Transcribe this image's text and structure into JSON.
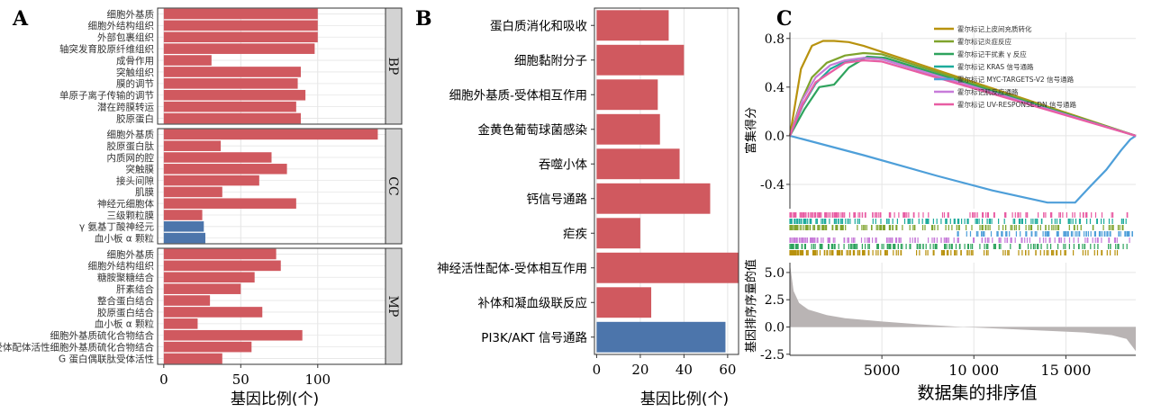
{
  "panels": {
    "A": {
      "label": "A"
    },
    "B": {
      "label": "B"
    },
    "C": {
      "label": "C"
    }
  },
  "colors": {
    "up": "#d0595f",
    "down": "#4c75ab",
    "strip": "#d3d3d3",
    "grid": "#e5e5e5",
    "rank": "#b9b4b4"
  },
  "chart_data": [
    {
      "id": "A",
      "type": "bar",
      "orientation": "horizontal",
      "xlabel": "基因比例(个)",
      "xlim": [
        -4,
        144
      ],
      "xticks": [
        0,
        50,
        100
      ],
      "facets": [
        {
          "name": "BP",
          "categories": [
            "细胞外基质",
            "细胞外结构组织",
            "外部包裹组织",
            "轴突发育胶原纤维组织",
            "成骨作用",
            "突触组织",
            "膜的调节",
            "单原子离子传输的调节",
            "潜在跨膜转运",
            "胶原蛋白"
          ],
          "values": [
            100,
            100,
            100,
            98,
            31,
            89,
            87,
            92,
            86,
            89
          ],
          "color_index": [
            0,
            0,
            0,
            0,
            0,
            0,
            0,
            0,
            0,
            0
          ]
        },
        {
          "name": "CC",
          "categories": [
            "细胞外基质",
            "胶原蛋白肽",
            "内质网的腔",
            "突触膜",
            "接头间隙",
            "肌膜",
            "神经元细胞体",
            "三级颗粒膜",
            "γ 氨基丁酸神经元",
            "血小板 α 颗粒"
          ],
          "values": [
            139,
            37,
            70,
            80,
            62,
            38,
            86,
            25,
            26,
            27
          ],
          "color_index": [
            0,
            0,
            0,
            0,
            0,
            0,
            0,
            0,
            1,
            1
          ]
        },
        {
          "name": "MP",
          "categories": [
            "细胞外基质",
            "细胞外结构组织",
            "糖胺聚糖结合",
            "肝素结合",
            "整合蛋白结合",
            "胶原蛋白结合",
            "血小板 α 颗粒",
            "细胞外基质硫化合物结合",
            "受体配体活性细胞外基质硫化合物结合",
            "G 蛋白偶联肽受体活性"
          ],
          "values": [
            73,
            76,
            59,
            50,
            30,
            64,
            22,
            90,
            57,
            38
          ],
          "color_index": [
            0,
            0,
            0,
            0,
            0,
            0,
            0,
            0,
            0,
            0
          ]
        }
      ]
    },
    {
      "id": "B",
      "type": "bar",
      "orientation": "horizontal",
      "xlabel": "基因比例(个)",
      "xlim": [
        -1,
        65
      ],
      "xticks": [
        0,
        20,
        40,
        60
      ],
      "categories": [
        "蛋白质消化和吸收",
        "细胞黏附分子",
        "细胞外基质-受体相互作用",
        "金黄色葡萄球菌感染",
        "吞噬小体",
        "钙信号通路",
        "疟疾",
        "神经活性配体-受体相互作用",
        "补体和凝血级联反应",
        "PI3K/AKT 信号通路"
      ],
      "values": [
        33,
        40,
        28,
        29,
        38,
        52,
        20,
        65,
        25,
        59
      ],
      "color_index": [
        0,
        0,
        0,
        0,
        0,
        0,
        0,
        0,
        0,
        1
      ]
    },
    {
      "id": "C",
      "type": "line",
      "xlabel": "数据集的排序值",
      "x_ticks": [
        5000,
        10000,
        15000
      ],
      "x_tick_labels": [
        "5000",
        "10 000",
        "15 000"
      ],
      "xlim": [
        0,
        18800
      ],
      "es_ylabel": "富集得分",
      "es_ylim": [
        -0.6,
        0.85
      ],
      "es_yticks": [
        0.8,
        0.4,
        0.0,
        -0.4
      ],
      "es_ytick_labels": [
        "0.8",
        "0.4",
        "0.0",
        "-0.4"
      ],
      "rank_ylabel": "基因排序序量的值",
      "rank_ylim": [
        -2.6,
        5.9
      ],
      "rank_yticks": [
        5.0,
        2.5,
        0.0,
        -2.5
      ],
      "rank_ytick_labels": [
        "5.0",
        "2.5",
        "0.0",
        "-2.5"
      ],
      "series": [
        {
          "name": "霍尔标记上皮间充质转化",
          "color": "#b8920e",
          "x": [
            0,
            600,
            1200,
            1800,
            2400,
            3200,
            4000,
            18800
          ],
          "y": [
            0.0,
            0.55,
            0.74,
            0.78,
            0.78,
            0.77,
            0.74,
            0.0
          ]
        },
        {
          "name": "霍尔标记炎症反应",
          "color": "#7fa32d",
          "x": [
            0,
            600,
            1200,
            2000,
            3000,
            4000,
            5000,
            18800
          ],
          "y": [
            0.0,
            0.28,
            0.48,
            0.6,
            0.66,
            0.68,
            0.67,
            0.0
          ]
        },
        {
          "name": "霍尔标记干扰素 γ 反应",
          "color": "#2ea35d",
          "x": [
            0,
            800,
            1600,
            2400,
            3200,
            4200,
            5200,
            18800
          ],
          "y": [
            0.0,
            0.22,
            0.4,
            0.42,
            0.56,
            0.65,
            0.64,
            0.0
          ]
        },
        {
          "name": "霍尔标记 KRAS 信号通路",
          "color": "#1dab9c",
          "x": [
            0,
            700,
            1400,
            2200,
            3000,
            4000,
            5000,
            18800
          ],
          "y": [
            0.0,
            0.25,
            0.43,
            0.55,
            0.61,
            0.64,
            0.63,
            0.0
          ]
        },
        {
          "name": "霍尔标记 MYC-TARGETS-V2 信号通路",
          "color": "#4e9fd9",
          "x": [
            0,
            4000,
            8000,
            11000,
            14000,
            15500,
            16300,
            17200,
            18000,
            18500,
            18800
          ],
          "y": [
            0.0,
            -0.16,
            -0.33,
            -0.45,
            -0.55,
            -0.55,
            -0.42,
            -0.28,
            -0.12,
            -0.03,
            0.0
          ]
        },
        {
          "name": "霍尔标记肌反应通路",
          "color": "#c77cd9",
          "x": [
            0,
            700,
            1400,
            2200,
            3000,
            4000,
            5000,
            18800
          ],
          "y": [
            0.0,
            0.3,
            0.48,
            0.58,
            0.62,
            0.64,
            0.63,
            0.0
          ]
        },
        {
          "name": "霍尔标记 UV-RESPONSE-DN 信号通路",
          "color": "#e85da3",
          "x": [
            0,
            700,
            1400,
            2200,
            3000,
            4000,
            5000,
            18800
          ],
          "y": [
            0.0,
            0.26,
            0.44,
            0.52,
            0.6,
            0.62,
            0.61,
            0.0
          ]
        }
      ],
      "rank_curve": {
        "x": [
          0,
          200,
          500,
          1000,
          2000,
          3000,
          5000,
          7000,
          9400,
          12000,
          14000,
          16000,
          17500,
          18300,
          18800
        ],
        "y": [
          5.8,
          3.3,
          2.2,
          1.6,
          1.1,
          0.8,
          0.5,
          0.25,
          0.0,
          -0.2,
          -0.35,
          -0.5,
          -0.75,
          -1.1,
          -2.2
        ]
      }
    }
  ]
}
